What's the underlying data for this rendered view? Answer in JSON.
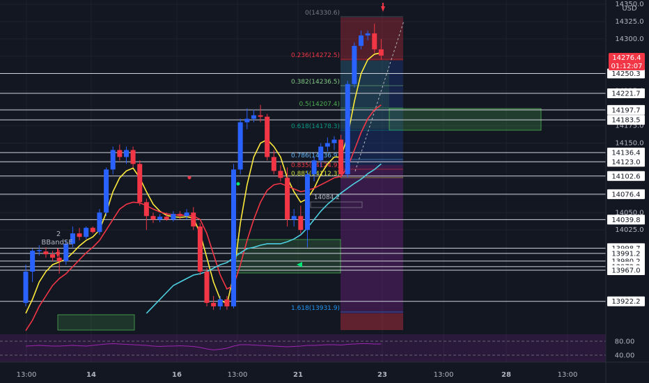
{
  "currency": "USD",
  "current_price": {
    "value": "14276.4",
    "countdown": "01:12:07"
  },
  "strategy_signal": {
    "count": "2",
    "name": "BBandSE"
  },
  "chart_data": {
    "type": "candlestick",
    "ylim": [
      13900,
      14350
    ],
    "y_ticks": [
      "14350.0",
      "14325.0",
      "14300.0",
      "14275.0",
      "14250.0",
      "14225.0",
      "14200.0",
      "14175.0",
      "14150.0",
      "14125.0",
      "14100.0",
      "14075.0",
      "14050.0",
      "14025.0"
    ],
    "x_ticks": [
      "13:00",
      "14",
      "16",
      "13:00",
      "21",
      "23",
      "13:00",
      "28",
      "13:00"
    ],
    "candles": [
      {
        "o": 13920,
        "h": 13975,
        "l": 13915,
        "c": 13965
      },
      {
        "o": 13965,
        "h": 13998,
        "l": 13950,
        "c": 13995
      },
      {
        "o": 13995,
        "h": 14003,
        "l": 13988,
        "c": 13996
      },
      {
        "o": 13994,
        "h": 14000,
        "l": 13985,
        "c": 13990
      },
      {
        "o": 13990,
        "h": 13995,
        "l": 13980,
        "c": 13985
      },
      {
        "o": 13985,
        "h": 13996,
        "l": 13962,
        "c": 13980
      },
      {
        "o": 13980,
        "h": 14010,
        "l": 13975,
        "c": 14005
      },
      {
        "o": 14005,
        "h": 14030,
        "l": 14000,
        "c": 14020
      },
      {
        "o": 14020,
        "h": 14028,
        "l": 14010,
        "c": 14015
      },
      {
        "o": 14015,
        "h": 14030,
        "l": 14012,
        "c": 14028
      },
      {
        "o": 14028,
        "h": 14030,
        "l": 14020,
        "c": 14022
      },
      {
        "o": 14022,
        "h": 14055,
        "l": 14018,
        "c": 14050
      },
      {
        "o": 14050,
        "h": 14115,
        "l": 14045,
        "c": 14112
      },
      {
        "o": 14112,
        "h": 14145,
        "l": 14105,
        "c": 14140
      },
      {
        "o": 14140,
        "h": 14148,
        "l": 14125,
        "c": 14130
      },
      {
        "o": 14130,
        "h": 14145,
        "l": 14120,
        "c": 14140
      },
      {
        "o": 14140,
        "h": 14145,
        "l": 14115,
        "c": 14120
      },
      {
        "o": 14120,
        "h": 14125,
        "l": 14060,
        "c": 14065
      },
      {
        "o": 14065,
        "h": 14070,
        "l": 14025,
        "c": 14045
      },
      {
        "o": 14045,
        "h": 14050,
        "l": 14035,
        "c": 14040
      },
      {
        "o": 14040,
        "h": 14048,
        "l": 14036,
        "c": 14044
      },
      {
        "o": 14044,
        "h": 14050,
        "l": 14038,
        "c": 14040
      },
      {
        "o": 14040,
        "h": 14052,
        "l": 14037,
        "c": 14048
      },
      {
        "o": 14048,
        "h": 14052,
        "l": 14040,
        "c": 14045
      },
      {
        "o": 14045,
        "h": 14055,
        "l": 14040,
        "c": 14050
      },
      {
        "o": 14050,
        "h": 14058,
        "l": 14025,
        "c": 14030
      },
      {
        "o": 14030,
        "h": 14035,
        "l": 13960,
        "c": 13965
      },
      {
        "o": 13965,
        "h": 13970,
        "l": 13915,
        "c": 13920
      },
      {
        "o": 13920,
        "h": 13930,
        "l": 13910,
        "c": 13915
      },
      {
        "o": 13915,
        "h": 13930,
        "l": 13910,
        "c": 13925
      },
      {
        "o": 13925,
        "h": 13930,
        "l": 13910,
        "c": 13915
      },
      {
        "o": 13915,
        "h": 14120,
        "l": 13912,
        "c": 14112
      },
      {
        "o": 14112,
        "h": 14185,
        "l": 14105,
        "c": 14180
      },
      {
        "o": 14180,
        "h": 14200,
        "l": 14170,
        "c": 14185
      },
      {
        "o": 14185,
        "h": 14198,
        "l": 14180,
        "c": 14190
      },
      {
        "o": 14190,
        "h": 14205,
        "l": 14180,
        "c": 14188
      },
      {
        "o": 14188,
        "h": 14192,
        "l": 14125,
        "c": 14130
      },
      {
        "o": 14130,
        "h": 14140,
        "l": 14105,
        "c": 14110
      },
      {
        "o": 14110,
        "h": 14118,
        "l": 14095,
        "c": 14100
      },
      {
        "o": 14100,
        "h": 14115,
        "l": 14030,
        "c": 14040
      },
      {
        "o": 14040,
        "h": 14055,
        "l": 14030,
        "c": 14045
      },
      {
        "o": 14045,
        "h": 14060,
        "l": 14020,
        "c": 14025
      },
      {
        "o": 14025,
        "h": 14110,
        "l": 14000,
        "c": 14105
      },
      {
        "o": 14105,
        "h": 14130,
        "l": 14095,
        "c": 14125
      },
      {
        "o": 14125,
        "h": 14150,
        "l": 14115,
        "c": 14145
      },
      {
        "o": 14145,
        "h": 14158,
        "l": 14138,
        "c": 14150
      },
      {
        "o": 14150,
        "h": 14160,
        "l": 14140,
        "c": 14155
      },
      {
        "o": 14155,
        "h": 14162,
        "l": 14100,
        "c": 14105
      },
      {
        "o": 14105,
        "h": 14240,
        "l": 14100,
        "c": 14235
      },
      {
        "o": 14235,
        "h": 14295,
        "l": 14230,
        "c": 14290
      },
      {
        "o": 14290,
        "h": 14312,
        "l": 14285,
        "c": 14305
      },
      {
        "o": 14305,
        "h": 14312,
        "l": 14298,
        "c": 14308
      },
      {
        "o": 14308,
        "h": 14322,
        "l": 14280,
        "c": 14285
      },
      {
        "o": 14285,
        "h": 14300,
        "l": 14270,
        "c": 14276
      }
    ],
    "indicators": {
      "yellow_ma": [
        13905,
        13925,
        13950,
        13965,
        13975,
        13979,
        13983,
        13992,
        14002,
        14010,
        14015,
        14025,
        14050,
        14080,
        14100,
        14110,
        14114,
        14100,
        14080,
        14062,
        14052,
        14046,
        14044,
        14043,
        14044,
        14042,
        14020,
        13985,
        13950,
        13925,
        13918,
        13960,
        14035,
        14090,
        14130,
        14150,
        14155,
        14145,
        14130,
        14100,
        14080,
        14065,
        14070,
        14085,
        14105,
        14120,
        14130,
        14130,
        14160,
        14210,
        14250,
        14270,
        14278,
        14280
      ],
      "red_ma": [
        13880,
        13895,
        13915,
        13930,
        13945,
        13955,
        13962,
        13972,
        13982,
        13992,
        14000,
        14010,
        14025,
        14040,
        14055,
        14062,
        14065,
        14064,
        14060,
        14055,
        14051,
        14048,
        14047,
        14046,
        14046,
        14045,
        14040,
        14020,
        13990,
        13960,
        13940,
        13945,
        13975,
        14010,
        14040,
        14065,
        14082,
        14090,
        14092,
        14088,
        14084,
        14080,
        14082,
        14085,
        14090,
        14095,
        14100,
        14102,
        14115,
        14140,
        14165,
        14185,
        14198,
        14205
      ],
      "cyan_ma_start_index": 18,
      "cyan_ma": [
        13905,
        13915,
        13925,
        13935,
        13945,
        13950,
        13955,
        13960,
        13962,
        13965,
        13970,
        13975,
        13978,
        13985,
        13992,
        13998,
        14000,
        14003,
        14005,
        14005,
        14005,
        14008,
        14012,
        14018,
        14028,
        14040,
        14052,
        14062,
        14070,
        14078,
        14085,
        14092,
        14098,
        14106,
        14112,
        14120
      ]
    },
    "horizontal_levels": [
      "14250.3",
      "14221.7",
      "14197.7",
      "14183.5",
      "14136.4",
      "14123.0",
      "14102.6",
      "14076.4",
      "14039.8",
      "13998.7",
      "13991.2",
      "13980.2",
      "13972.2",
      "13967.0",
      "13922.2"
    ],
    "fib_levels": [
      {
        "label": "0(14330.6)",
        "color": "#787b86"
      },
      {
        "label": "0.236(14272.5)",
        "color": "#f23645"
      },
      {
        "label": "0.382(14236.5)",
        "color": "#81c784"
      },
      {
        "label": "0.5(14207.4)",
        "color": "#4caf50"
      },
      {
        "label": "0.618(14178.3)",
        "color": "#089981"
      },
      {
        "label": "0.786(14136.9)",
        "color": "#64b5f6"
      },
      {
        "label": "0.835(14124.9)",
        "color": "#f23645"
      },
      {
        "label": "0.885(14112.3)",
        "color": "#cddc39"
      },
      {
        "label": "1.618(13931.9)",
        "color": "#2196f3"
      }
    ],
    "stop_label": "14084.2",
    "oscillator": {
      "upper": "80.00",
      "lower": "40.00",
      "ylim": [
        20,
        100
      ],
      "values": [
        66,
        67,
        68,
        67,
        66,
        66,
        67,
        68,
        67,
        66,
        68,
        70,
        72,
        73,
        72,
        71,
        70,
        69,
        68,
        66,
        65,
        66,
        66,
        67,
        66,
        65,
        62,
        58,
        55,
        57,
        60,
        66,
        70,
        70,
        69,
        68,
        67,
        66,
        65,
        64,
        65,
        66,
        68,
        68,
        69,
        70,
        70,
        69,
        71,
        72,
        73,
        73,
        72,
        72
      ]
    }
  },
  "colors": {
    "up": "#2962ff",
    "down": "#f23645",
    "yellow": "#ffeb3b",
    "red_line": "#f23645",
    "cyan": "#4dd0e1",
    "purple": "#9c27b0",
    "bg": "#131722",
    "label_bg": "#131722"
  }
}
